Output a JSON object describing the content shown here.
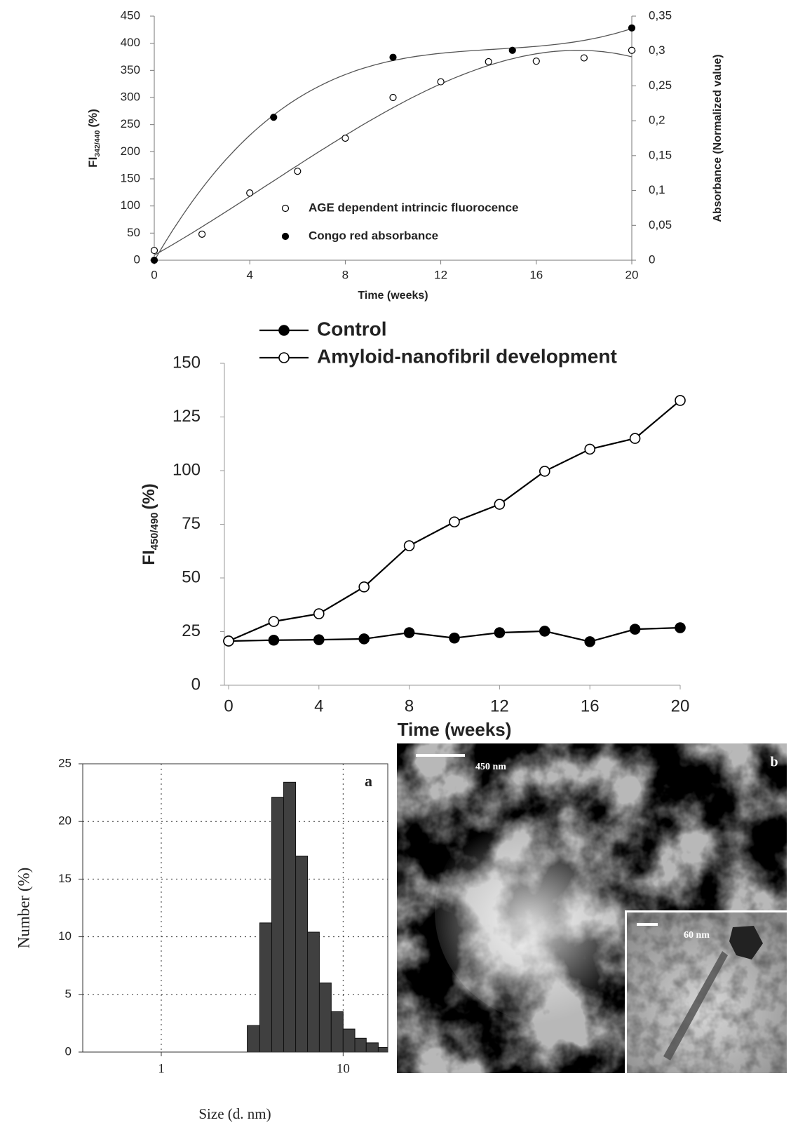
{
  "chart_data": [
    {
      "type": "scatter",
      "x_label": "Time (weeks)",
      "y_label": "FI",
      "y_label_sub": "342/440",
      "y_label_unit": "(%)",
      "y2_label": "Absorbance (Normalized value)",
      "xlim": [
        0,
        20
      ],
      "xticks": [
        0,
        4,
        8,
        12,
        16,
        20
      ],
      "ylim": [
        0,
        450
      ],
      "yticks": [
        0,
        50,
        100,
        150,
        200,
        250,
        300,
        350,
        400,
        450
      ],
      "y2lim": [
        0,
        0.35
      ],
      "y2ticks": [
        0,
        {
          "value": 0.05,
          "label": "0,05"
        },
        {
          "value": 0.1,
          "label": "0,1"
        },
        {
          "value": 0.15,
          "label": "0,15"
        },
        {
          "value": 0.2,
          "label": "0,2"
        },
        {
          "value": 0.25,
          "label": "0,25"
        },
        {
          "value": 0.3,
          "label": "0,3"
        },
        {
          "value": 0.35,
          "label": "0,35"
        }
      ],
      "legend": "lower right",
      "trend_lines": true,
      "series": [
        {
          "name": "AGE dependent intrincic fluorocence",
          "marker": "open",
          "color": "#000000",
          "x": [
            0,
            2,
            4,
            6,
            8,
            10,
            12,
            14,
            16,
            18,
            20
          ],
          "values": [
            18,
            48,
            124,
            164,
            225,
            300,
            329,
            366,
            367,
            373,
            387
          ]
        },
        {
          "name": "Congo red absorbance",
          "marker": "filled",
          "color": "#000000",
          "axis": "y2",
          "x": [
            0,
            5,
            10,
            15,
            20
          ],
          "values": [
            0,
            0.205,
            0.291,
            0.301,
            0.333
          ]
        }
      ]
    },
    {
      "type": "line",
      "x_label": "Time (weeks)",
      "y_label": "FI",
      "y_label_sub": "450/490",
      "y_label_unit": "(%)",
      "x": [
        0,
        2,
        4,
        6,
        8,
        10,
        12,
        14,
        16,
        18,
        20
      ],
      "xlim": [
        0,
        20
      ],
      "xticks": [
        0,
        4,
        8,
        12,
        16,
        20
      ],
      "ylim": [
        0,
        150
      ],
      "yticks": [
        0,
        25,
        50,
        75,
        100,
        125,
        150
      ],
      "legend": "upper left",
      "series": [
        {
          "name": "Control",
          "marker": "filled",
          "color": "#000000",
          "values": [
            20.6,
            21,
            21.2,
            21.6,
            24.5,
            22,
            24.5,
            25.2,
            20.3,
            26.1,
            26.8
          ]
        },
        {
          "name": "Amyloid-nanofibril development",
          "marker": "open",
          "color": "#000000",
          "values": [
            20.6,
            29.7,
            33.3,
            45.8,
            65,
            76.1,
            84.3,
            99.7,
            110,
            115,
            132.7
          ]
        }
      ]
    },
    {
      "type": "histogram",
      "annotation": "a",
      "x_label": "Size (d. nm)",
      "y_label": "Number (%)",
      "bins": [
        2.97,
        3.48,
        4.05,
        4.71,
        5.48,
        6.37,
        7.4,
        8.6,
        10,
        11.6,
        13.4,
        15.6,
        17.6
      ],
      "values": [
        2.3,
        11.2,
        22.1,
        23.4,
        17,
        10.4,
        6,
        3.5,
        2,
        1.2,
        0.8,
        0.4
      ],
      "color": "#404040",
      "xlim": [
        0.37,
        17.6
      ],
      "log_x": true,
      "xticks": [
        1,
        10
      ],
      "ylim": [
        0,
        25
      ],
      "yticks": [
        0,
        5,
        10,
        15,
        20,
        25
      ],
      "grid": true
    }
  ],
  "micrograph": {
    "label": "b",
    "scale_bar": "450 nm",
    "inset_scale_bar": "60 nm"
  }
}
